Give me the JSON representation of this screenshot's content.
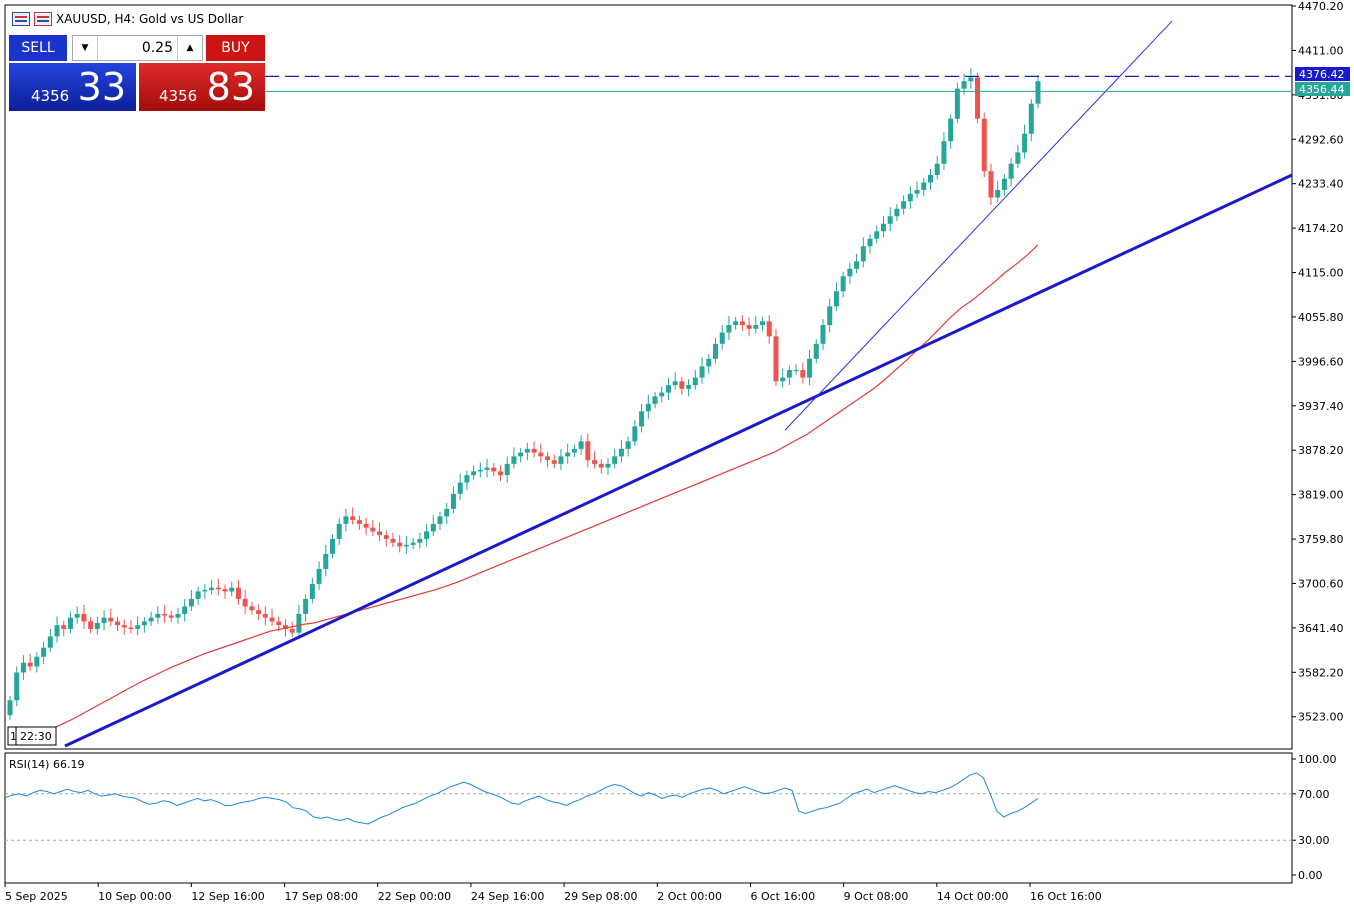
{
  "header": {
    "title": "XAUUSD, H4:  Gold vs US Dollar"
  },
  "trade_panel": {
    "sell_label": "SELL",
    "buy_label": "BUY",
    "lot": "0.25",
    "sell_price_prefix": "4356",
    "sell_price_big": "33",
    "buy_price_prefix": "4356",
    "buy_price_big": "83",
    "sell_color": "#1a33cc",
    "buy_color": "#cc1414"
  },
  "price_tags": {
    "upper": "4376.42",
    "lower": "4356.44"
  },
  "time_marker": "22:30",
  "rsi": {
    "label": "RSI(14) 66.19",
    "levels": [
      30,
      70
    ]
  },
  "chart_data": {
    "type": "line",
    "symbol": "XAUUSD",
    "timeframe": "H4",
    "title": "XAUUSD, H4:  Gold vs US Dollar",
    "x_tick_labels": [
      "5 Sep 2025",
      "10 Sep 00:00",
      "12 Sep 16:00",
      "17 Sep 08:00",
      "22 Sep 00:00",
      "24 Sep 16:00",
      "29 Sep 08:00",
      "2 Oct 00:00",
      "6 Oct 16:00",
      "9 Oct 08:00",
      "14 Oct 00:00",
      "16 Oct 16:00"
    ],
    "y_tick_labels": [
      "4470.20",
      "4411.00",
      "4351.80",
      "4292.60",
      "4233.40",
      "4174.20",
      "4115.00",
      "4055.80",
      "3996.60",
      "3937.40",
      "3878.20",
      "3819.00",
      "3759.80",
      "3700.60",
      "3641.40",
      "3582.20",
      "3523.00"
    ],
    "ylim": [
      3484,
      4470.2
    ],
    "grid": false,
    "colors": {
      "up": "#26a69a",
      "down": "#ef5350",
      "ma": "#e53935",
      "trend": "#1a1acc",
      "rsi": "#1e88e5"
    },
    "series": [
      {
        "name": "close",
        "values": [
          3545,
          3582,
          3595,
          3590,
          3603,
          3615,
          3630,
          3645,
          3640,
          3655,
          3660,
          3650,
          3640,
          3648,
          3655,
          3650,
          3645,
          3642,
          3640,
          3645,
          3650,
          3655,
          3660,
          3658,
          3655,
          3660,
          3670,
          3680,
          3690,
          3692,
          3695,
          3693,
          3690,
          3695,
          3680,
          3670,
          3665,
          3660,
          3655,
          3650,
          3645,
          3640,
          3635,
          3660,
          3680,
          3700,
          3720,
          3740,
          3760,
          3780,
          3790,
          3785,
          3780,
          3775,
          3770,
          3765,
          3760,
          3755,
          3750,
          3752,
          3755,
          3760,
          3770,
          3780,
          3790,
          3800,
          3820,
          3835,
          3845,
          3850,
          3852,
          3855,
          3850,
          3845,
          3860,
          3870,
          3875,
          3880,
          3875,
          3870,
          3865,
          3860,
          3870,
          3875,
          3880,
          3890,
          3865,
          3860,
          3855,
          3860,
          3870,
          3880,
          3890,
          3910,
          3930,
          3940,
          3950,
          3955,
          3965,
          3970,
          3960,
          3965,
          3975,
          3990,
          4000,
          4020,
          4035,
          4045,
          4050,
          4045,
          4040,
          4045,
          4050,
          4030,
          3970,
          3975,
          3985,
          3985,
          3975,
          4000,
          4020,
          4045,
          4070,
          4090,
          4110,
          4120,
          4130,
          4150,
          4160,
          4170,
          4180,
          4190,
          4200,
          4210,
          4220,
          4225,
          4235,
          4245,
          4260,
          4290,
          4320,
          4360,
          4370,
          4375,
          4320,
          4250,
          4215,
          4225,
          4240,
          4260,
          4275,
          4300,
          4340,
          4370
        ]
      },
      {
        "name": "ma",
        "values": [
          3500,
          3506,
          3513,
          3520,
          3528,
          3536,
          3544,
          3552,
          3560,
          3568,
          3575,
          3582,
          3589,
          3595,
          3601,
          3607,
          3612,
          3617,
          3622,
          3627,
          3632,
          3637,
          3640,
          3643,
          3646,
          3648,
          3652,
          3656,
          3660,
          3664,
          3668,
          3672,
          3676,
          3680,
          3684,
          3688,
          3692,
          3697,
          3702,
          3708,
          3714,
          3720,
          3726,
          3732,
          3738,
          3744,
          3750,
          3756,
          3762,
          3768,
          3774,
          3780,
          3786,
          3792,
          3798,
          3804,
          3810,
          3816,
          3822,
          3828,
          3834,
          3840,
          3846,
          3852,
          3858,
          3864,
          3870,
          3876,
          3884,
          3892,
          3900,
          3910,
          3920,
          3930,
          3940,
          3950,
          3960,
          3972,
          3985,
          3998,
          4012,
          4025,
          4040,
          4055,
          4068,
          4078,
          4090,
          4102,
          4115,
          4126,
          4138,
          4152
        ]
      },
      {
        "name": "rsi",
        "values": [
          67,
          69,
          70,
          68,
          71,
          73,
          72,
          70,
          72,
          74,
          72,
          71,
          73,
          70,
          68,
          69,
          70,
          68,
          67,
          66,
          63,
          61,
          62,
          64,
          63,
          60,
          62,
          64,
          66,
          64,
          65,
          63,
          60,
          60,
          62,
          63,
          64,
          66,
          67,
          66,
          65,
          63,
          58,
          57,
          55,
          50,
          49,
          50,
          48,
          47,
          49,
          46,
          45,
          44,
          47,
          50,
          52,
          55,
          58,
          60,
          62,
          65,
          68,
          70,
          73,
          76,
          78,
          80,
          78,
          75,
          72,
          70,
          68,
          65,
          62,
          61,
          64,
          66,
          68,
          65,
          63,
          62,
          60,
          63,
          65,
          68,
          70,
          73,
          76,
          78,
          77,
          74,
          70,
          68,
          71,
          69,
          66,
          68,
          69,
          67,
          70,
          72,
          74,
          75,
          73,
          70,
          72,
          74,
          76,
          74,
          72,
          70,
          71,
          73,
          75,
          73,
          55,
          53,
          55,
          57,
          58,
          60,
          62,
          66,
          70,
          72,
          74,
          71,
          73,
          75,
          77,
          75,
          73,
          71,
          70,
          72,
          71,
          73,
          75,
          78,
          82,
          86,
          88,
          84,
          70,
          55,
          50,
          53,
          55,
          58,
          62,
          66
        ]
      }
    ]
  }
}
